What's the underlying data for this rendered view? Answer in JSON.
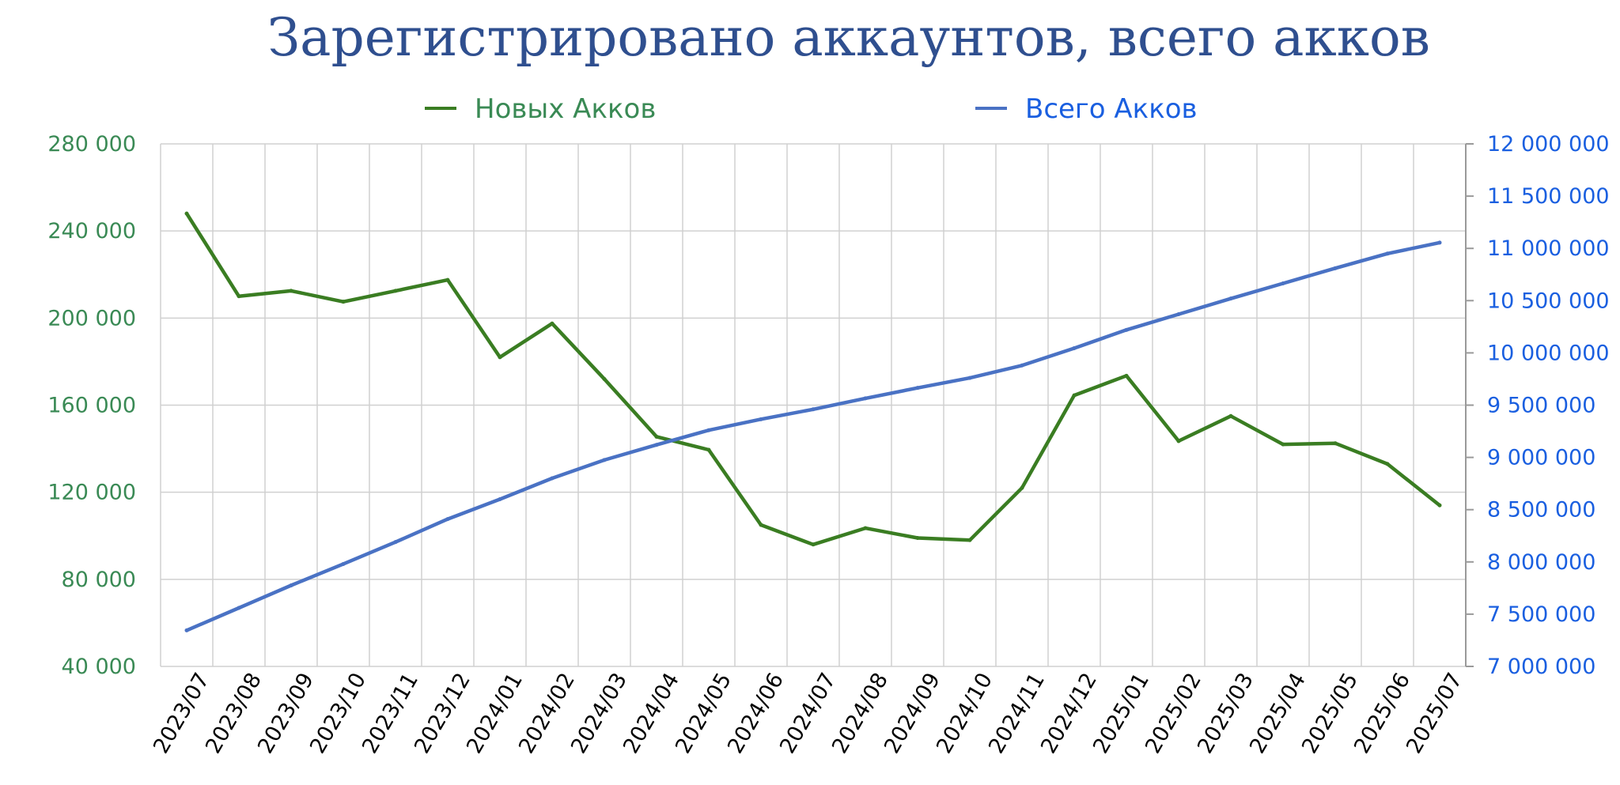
{
  "chart_data": {
    "type": "line",
    "title": "Зарегистрировано аккаунтов, всего акков",
    "legend_position": "top",
    "grid": true,
    "categories": [
      "2023/07",
      "2023/08",
      "2023/09",
      "2023/10",
      "2023/11",
      "2023/12",
      "2024/01",
      "2024/02",
      "2024/03",
      "2024/04",
      "2024/05",
      "2024/06",
      "2024/07",
      "2024/08",
      "2024/09",
      "2024/10",
      "2024/11",
      "2024/12",
      "2025/01",
      "2025/02",
      "2025/03",
      "2025/04",
      "2025/05",
      "2025/06",
      "2025/07"
    ],
    "series": [
      {
        "name": "Новых Акков",
        "axis": "left",
        "color": "#3a7d22",
        "values": [
          248000,
          210000,
          212500,
          207500,
          212500,
          217500,
          182000,
          197500,
          172000,
          145500,
          139500,
          105000,
          96000,
          103500,
          99000,
          98000,
          122000,
          164500,
          173500,
          143500,
          155000,
          142000,
          142500,
          133000,
          114000
        ]
      },
      {
        "name": "Всего Акков",
        "axis": "right",
        "color": "#4a72c4",
        "values": [
          7345000,
          7560000,
          7775000,
          7980000,
          8190000,
          8410000,
          8600000,
          8800000,
          8975000,
          9120000,
          9260000,
          9365000,
          9460000,
          9565000,
          9665000,
          9760000,
          9880000,
          10045000,
          10220000,
          10370000,
          10520000,
          10665000,
          10810000,
          10950000,
          11055000
        ]
      }
    ],
    "y_left": {
      "min": 40000,
      "max": 280000,
      "ticks": [
        40000,
        80000,
        120000,
        160000,
        200000,
        240000,
        280000
      ],
      "tick_labels": [
        "40 000",
        "80 000",
        "120 000",
        "160 000",
        "200 000",
        "240 000",
        "280 000"
      ],
      "color": "#3a8a55"
    },
    "y_right": {
      "min": 7000000,
      "max": 12000000,
      "ticks": [
        7000000,
        7500000,
        8000000,
        8500000,
        9000000,
        9500000,
        10000000,
        10500000,
        11000000,
        11500000,
        12000000
      ],
      "tick_labels": [
        "7 000 000",
        "7 500 000",
        "8 000 000",
        "8 500 000",
        "9 000 000",
        "9 500 000",
        "10 000 000",
        "10 500 000",
        "11 000 000",
        "11 500 000",
        "12 000 000"
      ],
      "color": "#1a5fe0"
    },
    "title_color": "#2f4f8f",
    "grid_color": "#d0d0d0"
  }
}
